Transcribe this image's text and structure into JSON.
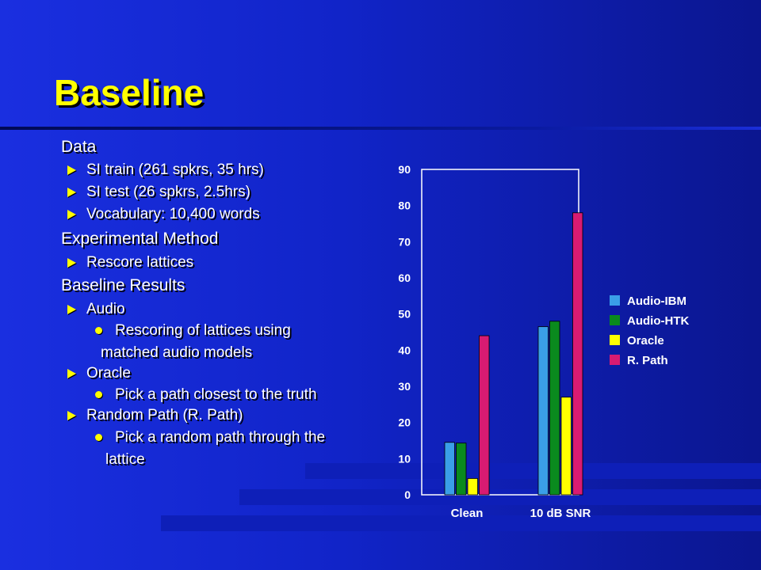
{
  "slide": {
    "title": "Baseline",
    "bullets": {
      "data": "Data",
      "si_train": "SI train (261 spkrs, 35 hrs)",
      "si_test": "SI test (26 spkrs, 2.5hrs)",
      "vocabulary": "Vocabulary: 10,400 words",
      "method": "Experimental Method",
      "rescore": "Rescore lattices",
      "results": "Baseline Results",
      "audio": "Audio",
      "audio_desc_1": "Rescoring of lattices using",
      "audio_desc_2": "matched audio models",
      "oracle": "Oracle",
      "oracle_desc": "Pick a path closest to the truth",
      "random": "Random Path (R. Path)",
      "random_desc_1": "Pick a random path through the",
      "random_desc_2": "lattice"
    }
  },
  "chart_data": {
    "type": "bar",
    "categories": [
      "Clean",
      "10 dB SNR"
    ],
    "series": [
      {
        "name": "Audio-IBM",
        "color": "#3a9ee8",
        "values": [
          14.5,
          46.5
        ]
      },
      {
        "name": "Audio-HTK",
        "color": "#0a8a1e",
        "values": [
          14.3,
          48
        ]
      },
      {
        "name": "Oracle",
        "color": "#ffff00",
        "values": [
          4.5,
          27
        ]
      },
      {
        "name": "R. Path",
        "color": "#d81b72",
        "values": [
          44,
          78
        ]
      }
    ],
    "ylim": [
      0,
      90
    ],
    "yticks": [
      "0",
      "10",
      "20",
      "30",
      "40",
      "50",
      "60",
      "70",
      "80",
      "90"
    ],
    "legend_position": "right",
    "grid": false
  }
}
